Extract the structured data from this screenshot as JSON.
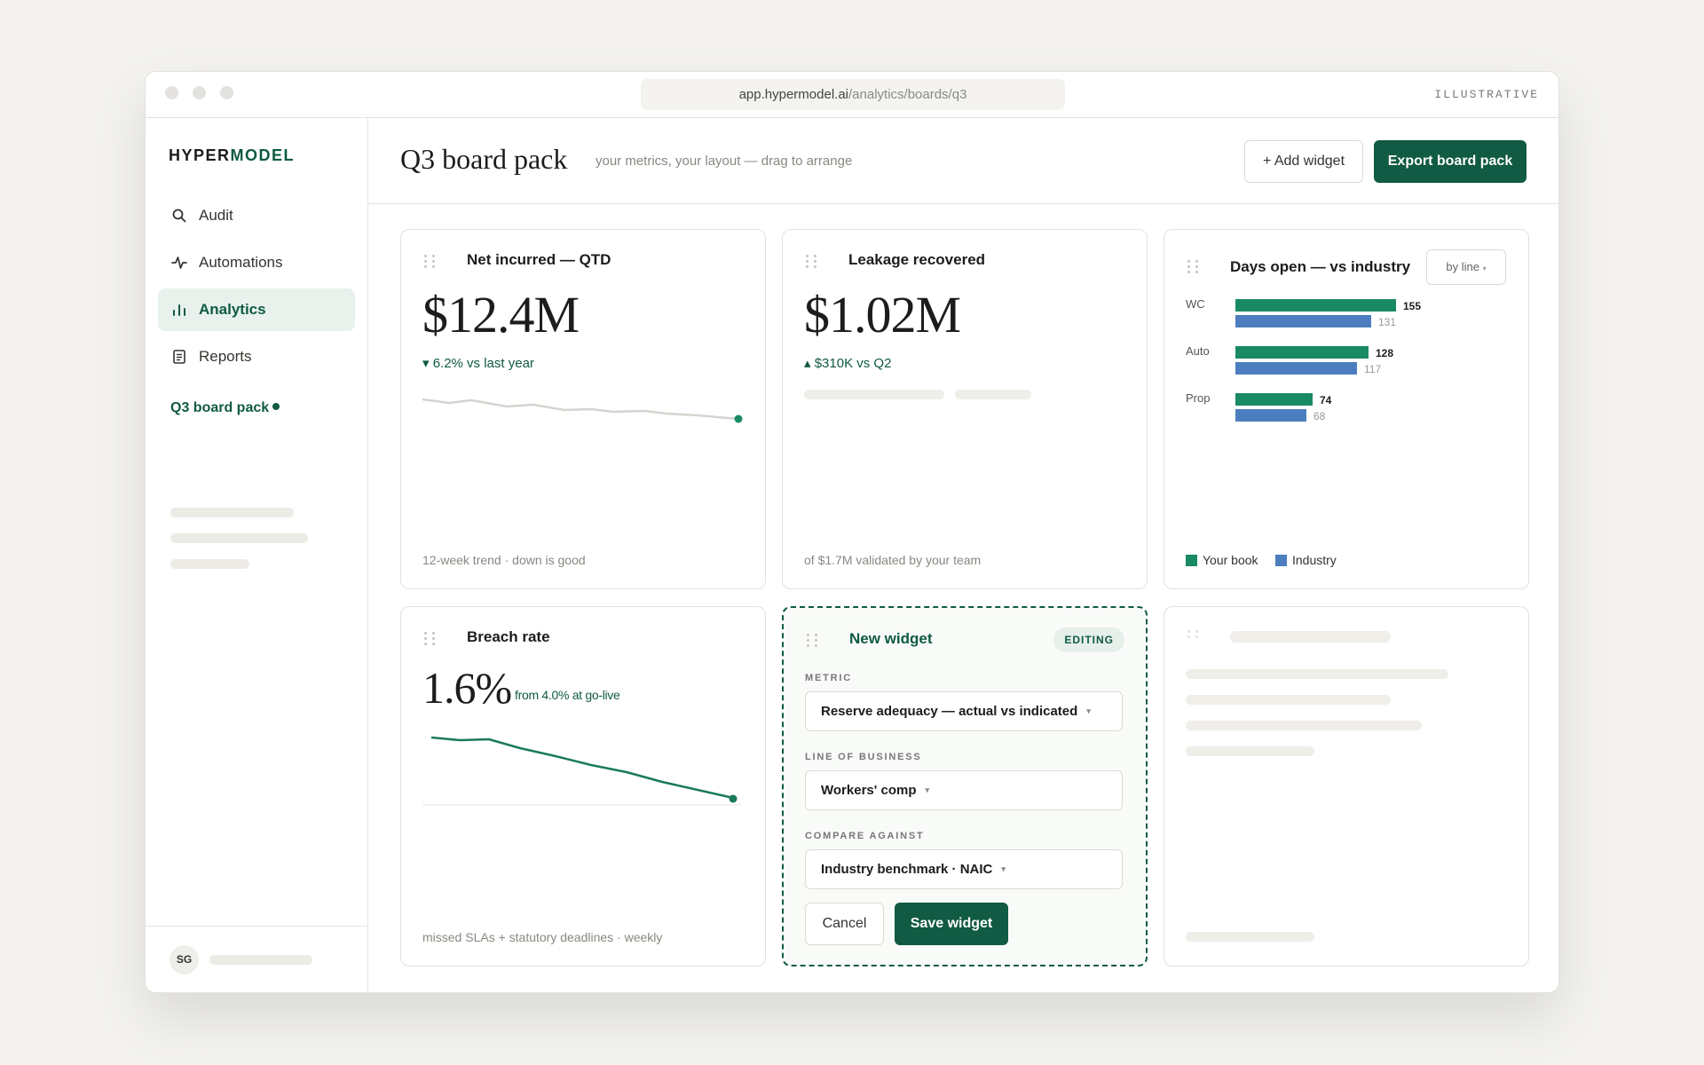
{
  "browser": {
    "url_host": "app.hypermodel.ai",
    "url_path": "/analytics/boards/q3",
    "tag": "ILLUSTRATIVE"
  },
  "sidebar": {
    "logo_a": "HYPER",
    "logo_b": "MODEL",
    "items": [
      {
        "label": "Audit",
        "icon": "search-icon"
      },
      {
        "label": "Automations",
        "icon": "activity-icon"
      },
      {
        "label": "Analytics",
        "icon": "bar-chart-icon",
        "active": true
      },
      {
        "label": "Reports",
        "icon": "document-icon"
      }
    ],
    "board_link": "Q3 board pack",
    "avatar": "SG"
  },
  "header": {
    "title": "Q3 board pack",
    "subtitle": "your metrics, your layout — drag to arrange",
    "add_widget": "+ Add widget",
    "export": "Export board pack"
  },
  "widgets": {
    "net_incurred": {
      "title": "Net incurred — QTD",
      "value": "$12.4M",
      "delta": "▾ 6.2% vs last year",
      "footer": "12-week trend · down is good",
      "trend_color": "#d6d4ce",
      "endpoint_color": "#1a8a64"
    },
    "leakage": {
      "title": "Leakage recovered",
      "value": "$1.02M",
      "delta": "▴ $310K vs Q2",
      "footer": "of $1.7M validated by your team"
    },
    "days_open": {
      "title": "Days open — vs industry",
      "segment": "by line",
      "legend_book": "Your book",
      "legend_industry": "Industry",
      "book_color": "#1a8a64",
      "industry_color": "#4c7ebf"
    },
    "breach": {
      "title": "Breach rate",
      "value": "1.6%",
      "note": "from 4.0% at go-live",
      "footer": "missed SLAs + statutory deadlines · weekly",
      "line_color": "#1a7a5a"
    },
    "new_widget": {
      "title": "New widget",
      "badge": "EDITING",
      "metric_label": "METRIC",
      "metric_value": "Reserve adequacy — actual vs indicated",
      "lob_label": "LINE OF BUSINESS",
      "lob_value": "Workers' comp",
      "compare_label": "COMPARE AGAINST",
      "compare_value": "Industry benchmark · NAIC",
      "cancel": "Cancel",
      "save": "Save widget"
    }
  },
  "chart_data": {
    "type": "bar",
    "categories": [
      "WC",
      "Auto",
      "Prop"
    ],
    "series": [
      {
        "name": "Your book",
        "values": [
          155,
          128,
          74
        ]
      },
      {
        "name": "Industry",
        "values": [
          131,
          117,
          68
        ]
      }
    ],
    "legend": "bottom-left"
  }
}
